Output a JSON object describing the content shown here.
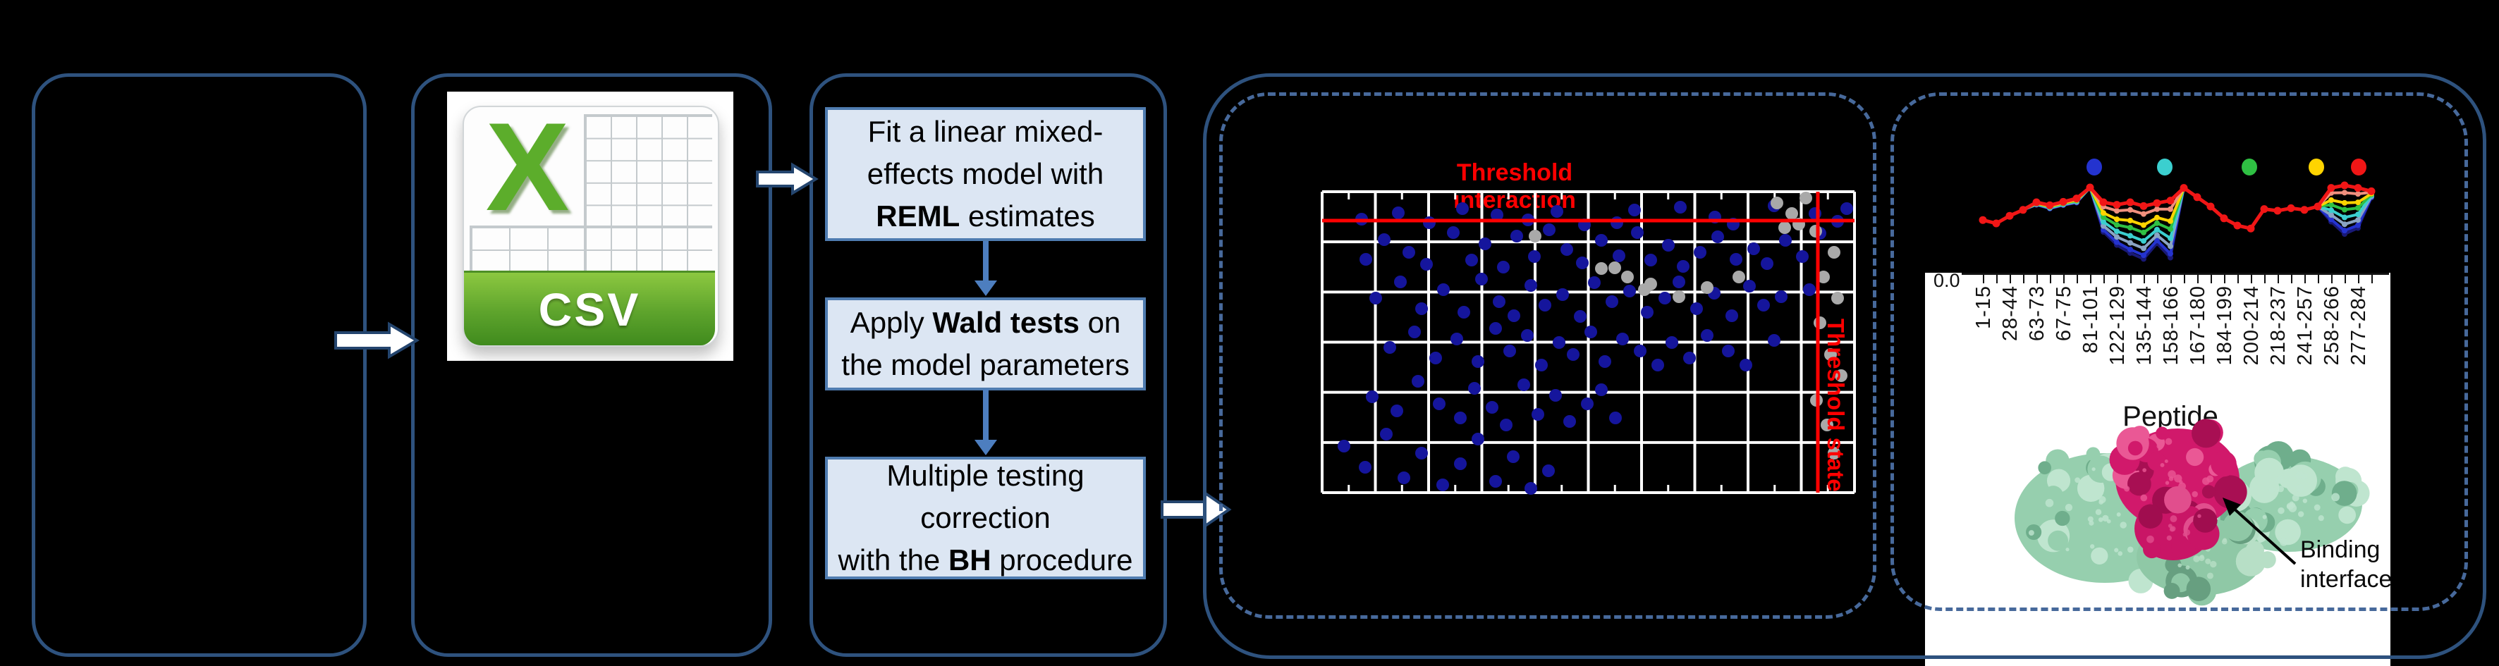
{
  "flowchart": {
    "boxes": [
      {
        "lines": [
          [
            {
              "t": "Fit a linear mixed-"
            }
          ],
          [
            {
              "t": "effects model with"
            }
          ],
          [
            {
              "t": "REML",
              "b": true
            },
            {
              "t": " estimates"
            }
          ]
        ]
      },
      {
        "lines": [
          [
            {
              "t": "Apply "
            },
            {
              "t": "Wald tests",
              "b": true
            },
            {
              "t": " on"
            }
          ],
          [
            {
              "t": "the model parameters"
            }
          ]
        ]
      },
      {
        "lines": [
          [
            {
              "t": "Multiple testing"
            }
          ],
          [
            {
              "t": "correction"
            }
          ],
          [
            {
              "t": "with the "
            },
            {
              "t": "BH",
              "b": true
            },
            {
              "t": " procedure"
            }
          ]
        ]
      }
    ]
  },
  "csv": {
    "x_letter": "X",
    "label": "CSV"
  },
  "scatter": {
    "title": "Threshold interaction",
    "state_label": "Threshold state",
    "chart_data": {
      "type": "scatter",
      "xlabel": "",
      "ylabel": "",
      "plot_size": [
        755,
        427
      ],
      "grid": {
        "cols": 10,
        "rows": 6,
        "line_color": "#ffffff"
      },
      "threshold_interaction_y": 41,
      "threshold_state_x": 703,
      "threshold_color": "#ff0000",
      "point_radius": 9,
      "blue_color": "#15159c",
      "gray_color": "#a9a9a9",
      "blue_points": [
        [
          108,
          30
        ],
        [
          152,
          44
        ],
        [
          199,
          24
        ],
        [
          292,
          40
        ],
        [
          333,
          28
        ],
        [
          418,
          44
        ],
        [
          443,
          26
        ],
        [
          557,
          36
        ],
        [
          583,
          46
        ],
        [
          641,
          20
        ],
        [
          699,
          31
        ],
        [
          731,
          42
        ],
        [
          744,
          24
        ],
        [
          56,
          39
        ],
        [
          248,
          33
        ],
        [
          372,
          47
        ],
        [
          508,
          22
        ],
        [
          62,
          96
        ],
        [
          88,
          68
        ],
        [
          123,
          86
        ],
        [
          148,
          103
        ],
        [
          186,
          58
        ],
        [
          212,
          97
        ],
        [
          231,
          74
        ],
        [
          257,
          107
        ],
        [
          276,
          63
        ],
        [
          301,
          92
        ],
        [
          322,
          54
        ],
        [
          347,
          82
        ],
        [
          369,
          101
        ],
        [
          396,
          69
        ],
        [
          421,
          91
        ],
        [
          447,
          58
        ],
        [
          466,
          97
        ],
        [
          491,
          76
        ],
        [
          512,
          106
        ],
        [
          536,
          86
        ],
        [
          561,
          64
        ],
        [
          587,
          96
        ],
        [
          612,
          81
        ],
        [
          631,
          102
        ],
        [
          657,
          69
        ],
        [
          681,
          92
        ],
        [
          706,
          59
        ],
        [
          76,
          151
        ],
        [
          111,
          128
        ],
        [
          141,
          166
        ],
        [
          172,
          139
        ],
        [
          201,
          171
        ],
        [
          226,
          124
        ],
        [
          251,
          156
        ],
        [
          272,
          176
        ],
        [
          296,
          133
        ],
        [
          316,
          161
        ],
        [
          341,
          146
        ],
        [
          366,
          177
        ],
        [
          386,
          129
        ],
        [
          411,
          156
        ],
        [
          436,
          141
        ],
        [
          461,
          171
        ],
        [
          486,
          151
        ],
        [
          506,
          128
        ],
        [
          531,
          166
        ],
        [
          556,
          144
        ],
        [
          581,
          176
        ],
        [
          606,
          134
        ],
        [
          626,
          161
        ],
        [
          651,
          149
        ],
        [
          691,
          139
        ],
        [
          96,
          221
        ],
        [
          131,
          199
        ],
        [
          161,
          236
        ],
        [
          191,
          209
        ],
        [
          221,
          241
        ],
        [
          246,
          194
        ],
        [
          266,
          226
        ],
        [
          291,
          204
        ],
        [
          311,
          246
        ],
        [
          336,
          214
        ],
        [
          356,
          231
        ],
        [
          381,
          199
        ],
        [
          401,
          241
        ],
        [
          426,
          209
        ],
        [
          451,
          226
        ],
        [
          476,
          246
        ],
        [
          496,
          214
        ],
        [
          521,
          236
        ],
        [
          546,
          204
        ],
        [
          576,
          226
        ],
        [
          601,
          246
        ],
        [
          641,
          211
        ],
        [
          71,
          291
        ],
        [
          106,
          311
        ],
        [
          136,
          269
        ],
        [
          166,
          301
        ],
        [
          196,
          321
        ],
        [
          216,
          279
        ],
        [
          241,
          306
        ],
        [
          261,
          331
        ],
        [
          286,
          274
        ],
        [
          306,
          316
        ],
        [
          331,
          289
        ],
        [
          351,
          326
        ],
        [
          376,
          301
        ],
        [
          396,
          281
        ],
        [
          416,
          321
        ],
        [
          31,
          361
        ],
        [
          61,
          391
        ],
        [
          91,
          344
        ],
        [
          116,
          406
        ],
        [
          141,
          371
        ],
        [
          171,
          416
        ],
        [
          196,
          386
        ],
        [
          221,
          351
        ],
        [
          246,
          411
        ],
        [
          271,
          376
        ],
        [
          296,
          421
        ],
        [
          321,
          396
        ]
      ],
      "gray_points": [
        [
          700,
          56
        ],
        [
          726,
          86
        ],
        [
          711,
          121
        ],
        [
          731,
          151
        ],
        [
          706,
          186
        ],
        [
          721,
          231
        ],
        [
          736,
          261
        ],
        [
          701,
          296
        ],
        [
          716,
          331
        ],
        [
          726,
          371
        ],
        [
          645,
          16
        ],
        [
          666,
          31
        ],
        [
          686,
          9
        ],
        [
          656,
          51
        ],
        [
          676,
          46
        ],
        [
          415,
          108
        ],
        [
          433,
          121
        ],
        [
          466,
          131
        ],
        [
          546,
          136
        ],
        [
          506,
          149
        ],
        [
          457,
          139
        ],
        [
          396,
          109
        ],
        [
          302,
          63
        ],
        [
          591,
          121
        ]
      ]
    }
  },
  "uptake": {
    "chart_data": {
      "type": "line",
      "title": "",
      "xlabel": "Peptide",
      "ylabel": "",
      "y_axis_bottom_tick": "0.0",
      "categories": [
        "1-15",
        "28-44",
        "63-73",
        "67-75",
        "81-101",
        "122-129",
        "135-144",
        "158-166",
        "167-180",
        "184-199",
        "200-214",
        "218-237",
        "241-257",
        "258-266",
        "277-284"
      ],
      "n_points": 30,
      "base_profile": [
        172,
        180,
        162,
        148,
        130,
        137,
        129,
        121,
        95,
        130,
        136,
        130,
        139,
        132,
        126,
        96,
        118,
        140,
        168,
        185,
        192,
        146,
        150,
        144,
        148,
        140,
        96,
        90,
        96,
        104
      ],
      "dip_profile": [
        0,
        0,
        0,
        0,
        6,
        8,
        8,
        10,
        0,
        70,
        95,
        120,
        125,
        95,
        135,
        0,
        0,
        0,
        0,
        0,
        0,
        0,
        0,
        0,
        0,
        0,
        80,
        115,
        95,
        15
      ],
      "series": [
        {
          "name": "navy",
          "color": "#191977",
          "dip_factor": 1.0
        },
        {
          "name": "blue",
          "color": "#2433cf",
          "dip_factor": 0.93
        },
        {
          "name": "steel",
          "color": "#8aa4c4",
          "dip_factor": 0.8
        },
        {
          "name": "cyan",
          "color": "#3bcfcf",
          "dip_factor": 0.66
        },
        {
          "name": "green",
          "color": "#2fc043",
          "dip_factor": 0.5
        },
        {
          "name": "yellow",
          "color": "#ffd400",
          "dip_factor": 0.36
        },
        {
          "name": "salmon",
          "color": "#f0907e",
          "dip_factor": 0.15
        },
        {
          "name": "red",
          "color": "#f11616",
          "dip_factor": 0.0
        }
      ],
      "legend_dot_colors": [
        "#2433cf",
        "#3bcfcf",
        "#2fc043",
        "#ffd400",
        "#f11616"
      ]
    }
  },
  "structure": {
    "caption_line1": "Binding",
    "caption_line2": "interface"
  }
}
